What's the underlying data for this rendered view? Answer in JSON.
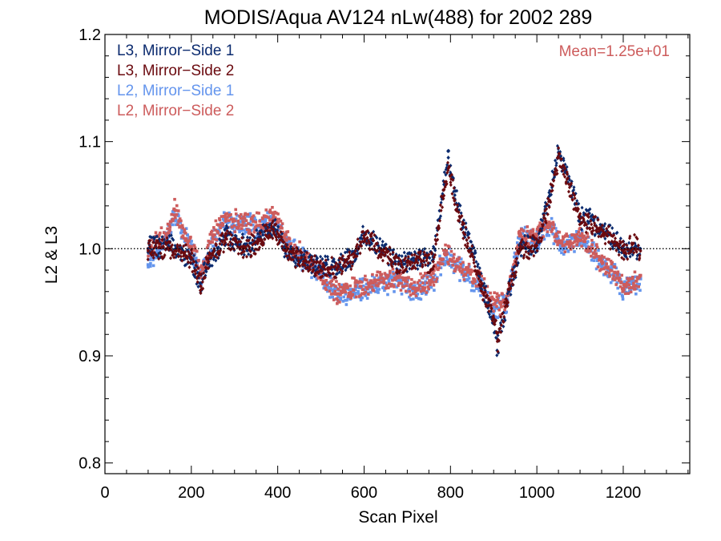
{
  "chart_data": {
    "type": "scatter",
    "title": "MODIS/Aqua AV124 nLw(488) for 2002 289",
    "xlabel": "Scan Pixel",
    "ylabel": "L2 & L3",
    "xlim": [
      0,
      1354
    ],
    "ylim": [
      0.79,
      1.2
    ],
    "x_ticks": [
      0,
      200,
      400,
      600,
      800,
      1000,
      1200
    ],
    "x_tick_labels": [
      "0",
      "200",
      "400",
      "600",
      "800",
      "1000",
      "1200"
    ],
    "y_ticks": [
      0.8,
      0.9,
      1.0,
      1.1,
      1.2
    ],
    "y_tick_labels": [
      "0.8",
      "0.9",
      "1.0",
      "1.1",
      "1.2"
    ],
    "x_minor_step": 50,
    "y_minor_step": 0.02,
    "reference_line": {
      "y": 1.0,
      "style": "dotted"
    },
    "annotation": "Mean=1.25e+01",
    "annotation_color": "#cd5c5c",
    "legend_position": "top-left",
    "grid": false,
    "series": [
      {
        "name": "L3, Mirror−Side 1",
        "color": "#0a2a6e",
        "marker": "diamond",
        "points": [
          [
            100,
            1.0
          ],
          [
            150,
            1.002
          ],
          [
            200,
            0.99
          ],
          [
            222,
            0.968
          ],
          [
            240,
            0.99
          ],
          [
            280,
            1.012
          ],
          [
            320,
            1.002
          ],
          [
            360,
            1.01
          ],
          [
            390,
            1.02
          ],
          [
            420,
            1.0
          ],
          [
            460,
            0.99
          ],
          [
            500,
            0.982
          ],
          [
            540,
            0.985
          ],
          [
            580,
            0.995
          ],
          [
            600,
            1.012
          ],
          [
            640,
            1.0
          ],
          [
            680,
            0.988
          ],
          [
            720,
            0.99
          ],
          [
            760,
            0.99
          ],
          [
            785,
            1.06
          ],
          [
            795,
            1.085
          ],
          [
            810,
            1.05
          ],
          [
            830,
            1.02
          ],
          [
            850,
            1.0
          ],
          [
            870,
            0.97
          ],
          [
            900,
            0.93
          ],
          [
            908,
            0.905
          ],
          [
            930,
            0.95
          ],
          [
            960,
            1.0
          ],
          [
            1000,
            1.005
          ],
          [
            1030,
            1.05
          ],
          [
            1050,
            1.09
          ],
          [
            1070,
            1.07
          ],
          [
            1100,
            1.03
          ],
          [
            1150,
            1.02
          ],
          [
            1200,
            1.0
          ],
          [
            1220,
            1.0
          ],
          [
            1240,
            1.0
          ]
        ]
      },
      {
        "name": "L3, Mirror−Side 2",
        "color": "#6b0a0f",
        "marker": "diamond",
        "points": [
          [
            100,
            0.998
          ],
          [
            150,
            1.0
          ],
          [
            200,
            0.992
          ],
          [
            222,
            0.965
          ],
          [
            240,
            0.988
          ],
          [
            280,
            1.01
          ],
          [
            320,
            1.0
          ],
          [
            360,
            1.008
          ],
          [
            390,
            1.018
          ],
          [
            420,
            0.998
          ],
          [
            460,
            0.988
          ],
          [
            500,
            0.98
          ],
          [
            540,
            0.983
          ],
          [
            580,
            0.993
          ],
          [
            600,
            1.01
          ],
          [
            640,
            0.998
          ],
          [
            680,
            0.986
          ],
          [
            720,
            0.988
          ],
          [
            760,
            0.988
          ],
          [
            785,
            1.055
          ],
          [
            795,
            1.075
          ],
          [
            810,
            1.045
          ],
          [
            830,
            1.015
          ],
          [
            850,
            0.995
          ],
          [
            870,
            0.965
          ],
          [
            900,
            0.935
          ],
          [
            910,
            0.915
          ],
          [
            930,
            0.952
          ],
          [
            960,
            0.998
          ],
          [
            1000,
            1.003
          ],
          [
            1030,
            1.045
          ],
          [
            1050,
            1.085
          ],
          [
            1070,
            1.065
          ],
          [
            1100,
            1.028
          ],
          [
            1150,
            1.018
          ],
          [
            1200,
            0.998
          ],
          [
            1220,
            1.005
          ],
          [
            1240,
            0.998
          ]
        ]
      },
      {
        "name": "L2, Mirror−Side 1",
        "color": "#6495ed",
        "marker": "square",
        "points": [
          [
            100,
            0.985
          ],
          [
            150,
            1.015
          ],
          [
            160,
            1.035
          ],
          [
            200,
            1.0
          ],
          [
            222,
            0.975
          ],
          [
            250,
            1.01
          ],
          [
            280,
            1.025
          ],
          [
            320,
            1.022
          ],
          [
            360,
            1.02
          ],
          [
            390,
            1.03
          ],
          [
            420,
            1.005
          ],
          [
            460,
            0.99
          ],
          [
            500,
            0.975
          ],
          [
            540,
            0.955
          ],
          [
            580,
            0.962
          ],
          [
            620,
            0.965
          ],
          [
            680,
            0.97
          ],
          [
            720,
            0.96
          ],
          [
            760,
            0.97
          ],
          [
            790,
            0.995
          ],
          [
            810,
            0.985
          ],
          [
            840,
            0.975
          ],
          [
            870,
            0.965
          ],
          [
            900,
            0.945
          ],
          [
            930,
            0.948
          ],
          [
            960,
            1.01
          ],
          [
            1000,
            1.01
          ],
          [
            1030,
            1.02
          ],
          [
            1060,
            1.0
          ],
          [
            1100,
            1.01
          ],
          [
            1150,
            0.985
          ],
          [
            1180,
            0.975
          ],
          [
            1200,
            0.96
          ],
          [
            1240,
            0.972
          ]
        ]
      },
      {
        "name": "L2, Mirror−Side 2",
        "color": "#cd5c5c",
        "marker": "square",
        "points": [
          [
            100,
            1.0
          ],
          [
            150,
            1.017
          ],
          [
            160,
            1.037
          ],
          [
            200,
            1.002
          ],
          [
            222,
            0.978
          ],
          [
            250,
            1.012
          ],
          [
            280,
            1.028
          ],
          [
            320,
            1.025
          ],
          [
            360,
            1.022
          ],
          [
            390,
            1.033
          ],
          [
            420,
            1.008
          ],
          [
            460,
            0.992
          ],
          [
            500,
            0.978
          ],
          [
            540,
            0.958
          ],
          [
            580,
            0.965
          ],
          [
            620,
            0.968
          ],
          [
            680,
            0.973
          ],
          [
            720,
            0.963
          ],
          [
            760,
            0.973
          ],
          [
            790,
            0.998
          ],
          [
            810,
            0.988
          ],
          [
            840,
            0.978
          ],
          [
            870,
            0.968
          ],
          [
            900,
            0.948
          ],
          [
            930,
            0.95
          ],
          [
            960,
            1.012
          ],
          [
            1000,
            1.013
          ],
          [
            1030,
            1.023
          ],
          [
            1060,
            1.003
          ],
          [
            1100,
            1.012
          ],
          [
            1150,
            0.988
          ],
          [
            1180,
            0.978
          ],
          [
            1200,
            0.963
          ],
          [
            1240,
            0.975
          ]
        ]
      }
    ]
  }
}
